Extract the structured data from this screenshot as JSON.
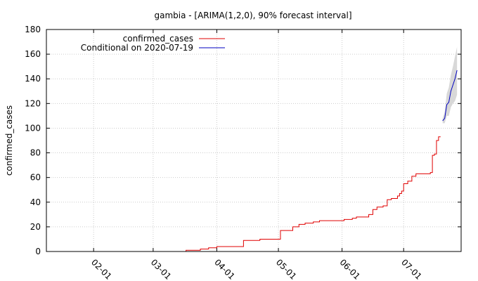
{
  "chart_data": {
    "type": "line",
    "title": "gambia -  [ARIMA(1,2,0), 90% forecast interval]",
    "ylabel": "confirmed_cases",
    "xlabel": "",
    "xlim": [
      "2020-01-09",
      "2020-07-29"
    ],
    "ylim": [
      0,
      180
    ],
    "yticks": [
      0,
      20,
      40,
      60,
      80,
      100,
      120,
      140,
      160,
      180
    ],
    "xticks": [
      "02-01",
      "03-01",
      "04-01",
      "05-01",
      "06-01",
      "07-01"
    ],
    "xtick_dates": [
      "2020-02-01",
      "2020-03-01",
      "2020-04-01",
      "2020-05-01",
      "2020-06-01",
      "2020-07-01"
    ],
    "grid": true,
    "legend_position": "top-left",
    "series": [
      {
        "name": "confirmed_cases",
        "color": "#e00000",
        "points": [
          [
            "2020-03-16",
            0
          ],
          [
            "2020-03-17",
            1
          ],
          [
            "2020-03-23",
            1
          ],
          [
            "2020-03-24",
            2
          ],
          [
            "2020-03-28",
            3
          ],
          [
            "2020-03-31",
            3
          ],
          [
            "2020-04-01",
            4
          ],
          [
            "2020-04-13",
            4
          ],
          [
            "2020-04-14",
            9
          ],
          [
            "2020-04-21",
            9
          ],
          [
            "2020-04-22",
            10
          ],
          [
            "2020-05-01",
            10
          ],
          [
            "2020-05-02",
            17
          ],
          [
            "2020-05-07",
            17
          ],
          [
            "2020-05-08",
            20
          ],
          [
            "2020-05-10",
            20
          ],
          [
            "2020-05-11",
            22
          ],
          [
            "2020-05-14",
            23
          ],
          [
            "2020-05-18",
            24
          ],
          [
            "2020-05-21",
            25
          ],
          [
            "2020-06-01",
            25
          ],
          [
            "2020-06-02",
            26
          ],
          [
            "2020-06-06",
            27
          ],
          [
            "2020-06-08",
            28
          ],
          [
            "2020-06-13",
            28
          ],
          [
            "2020-06-14",
            30
          ],
          [
            "2020-06-15",
            30
          ],
          [
            "2020-06-16",
            34
          ],
          [
            "2020-06-18",
            36
          ],
          [
            "2020-06-21",
            37
          ],
          [
            "2020-06-23",
            42
          ],
          [
            "2020-06-25",
            43
          ],
          [
            "2020-06-28",
            45
          ],
          [
            "2020-06-29",
            47
          ],
          [
            "2020-06-30",
            49
          ],
          [
            "2020-07-01",
            55
          ],
          [
            "2020-07-03",
            57
          ],
          [
            "2020-07-05",
            61
          ],
          [
            "2020-07-07",
            63
          ],
          [
            "2020-07-14",
            64
          ],
          [
            "2020-07-15",
            78
          ],
          [
            "2020-07-16",
            79
          ],
          [
            "2020-07-17",
            90
          ],
          [
            "2020-07-18",
            93
          ],
          [
            "2020-07-19",
            93
          ]
        ]
      },
      {
        "name": "Conditional on 2020-07-19",
        "color": "#0000c0",
        "points": [
          [
            "2020-07-20",
            106
          ],
          [
            "2020-07-21",
            108
          ],
          [
            "2020-07-22",
            119
          ],
          [
            "2020-07-23",
            121
          ],
          [
            "2020-07-24",
            130
          ],
          [
            "2020-07-25",
            135
          ],
          [
            "2020-07-26",
            140
          ],
          [
            "2020-07-27",
            147
          ]
        ],
        "interval": {
          "color": "#d8d8d8",
          "lower": [
            104,
            104,
            110,
            110,
            117,
            120,
            122,
            127
          ],
          "upper": [
            108,
            113,
            128,
            133,
            143,
            150,
            158,
            166
          ]
        }
      }
    ]
  }
}
